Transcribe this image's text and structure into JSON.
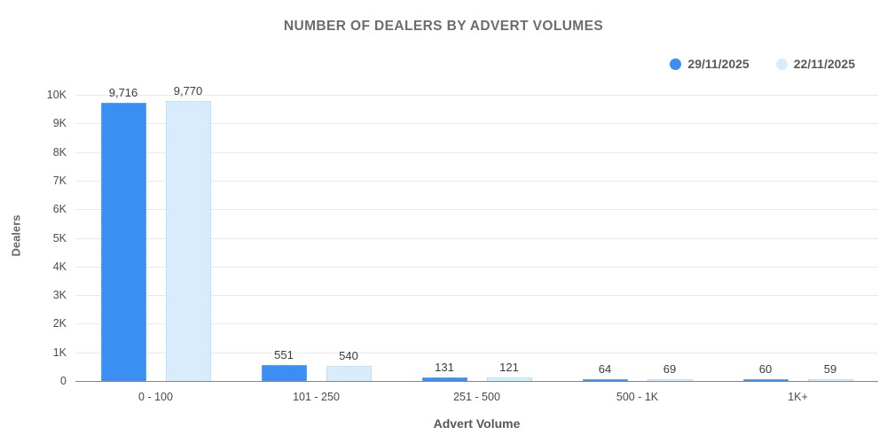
{
  "title": "NUMBER OF DEALERS BY ADVERT VOLUMES",
  "axes": {
    "x_title": "Advert Volume",
    "y_title": "Dealers"
  },
  "chart_data": {
    "type": "bar",
    "title": "NUMBER OF DEALERS BY ADVERT VOLUMES",
    "xlabel": "Advert Volume",
    "ylabel": "Dealers",
    "categories": [
      "0 - 100",
      "101 - 250",
      "251 - 500",
      "500 - 1K",
      "1K+"
    ],
    "series": [
      {
        "name": "29/11/2025",
        "color": "#3b8ff2",
        "border_color": "#7ab5f6",
        "values": [
          9716,
          551,
          131,
          64,
          60
        ],
        "labels": [
          "9,716",
          "551",
          "131",
          "64",
          "60"
        ]
      },
      {
        "name": "22/11/2025",
        "color": "#d7edfd",
        "border_color": "#a9d6f8",
        "values": [
          9770,
          540,
          121,
          69,
          59
        ],
        "labels": [
          "9,770",
          "540",
          "121",
          "69",
          "59"
        ]
      }
    ],
    "ylim": [
      0,
      10000
    ],
    "y_ticks": [
      {
        "value": 0,
        "label": "0"
      },
      {
        "value": 1000,
        "label": "1K"
      },
      {
        "value": 2000,
        "label": "2K"
      },
      {
        "value": 3000,
        "label": "3K"
      },
      {
        "value": 4000,
        "label": "4K"
      },
      {
        "value": 5000,
        "label": "5K"
      },
      {
        "value": 6000,
        "label": "6K"
      },
      {
        "value": 7000,
        "label": "7K"
      },
      {
        "value": 8000,
        "label": "8K"
      },
      {
        "value": 9000,
        "label": "9K"
      },
      {
        "value": 10000,
        "label": "10K"
      }
    ],
    "grid": true,
    "legend_position": "top-right"
  },
  "colors": {
    "background": "#ffffff",
    "gridline": "#e9e9ea",
    "axis_line": "#858789",
    "title_text": "#6a6d70",
    "tick_text": "#4a4c4e",
    "value_text": "#3a3c3e"
  }
}
